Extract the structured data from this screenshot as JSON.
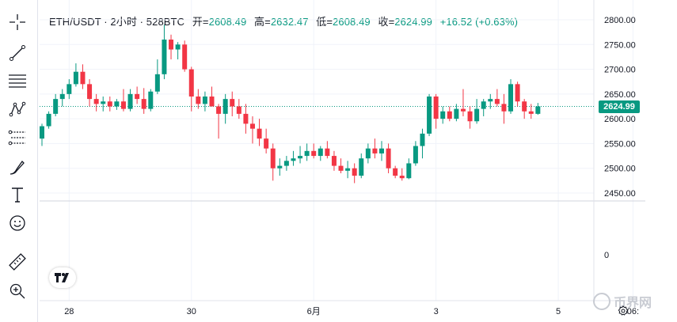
{
  "header": {
    "symbol": "ETH/USDT · 2小时 · 528BTC",
    "open_label": "开=",
    "open": "2608.49",
    "high_label": "高=",
    "high": "2632.47",
    "low_label": "低=",
    "low": "2608.49",
    "close_label": "收=",
    "close": "2624.99",
    "change": "+16.52 (+0.63%)"
  },
  "price_badge": "2624.99",
  "watermark": "币界网",
  "toolbar": {
    "tools": [
      "crosshair-icon",
      "trendline-icon",
      "horizontal-lines-icon",
      "pattern-icon",
      "fib-icon",
      "brush-icon",
      "text-icon",
      "emoji-icon",
      "ruler-icon",
      "zoom-icon"
    ]
  },
  "colors": {
    "up": "#089981",
    "down": "#f23645",
    "grid": "#e0e3eb"
  },
  "chart_data": {
    "type": "candlestick",
    "y_axis": {
      "ticks": [
        "2800.00",
        "2750.00",
        "2700.00",
        "2650.00",
        "2600.00",
        "2550.00",
        "2500.00",
        "2450.00"
      ],
      "volume_tick": "0",
      "range": [
        2430,
        2815
      ]
    },
    "x_axis": {
      "labels": [
        {
          "text": "28",
          "index": 4
        },
        {
          "text": "30",
          "index": 22
        },
        {
          "text": "6月",
          "index": 40
        },
        {
          "text": "3",
          "index": 58
        },
        {
          "text": "5",
          "index": 76
        },
        {
          "text": "06:",
          "index": 87
        }
      ]
    },
    "last_price": 2624.99,
    "candles": [
      [
        2560,
        2590,
        2545,
        2585
      ],
      [
        2585,
        2615,
        2580,
        2610
      ],
      [
        2610,
        2650,
        2605,
        2640
      ],
      [
        2640,
        2660,
        2625,
        2650
      ],
      [
        2650,
        2680,
        2640,
        2670
      ],
      [
        2670,
        2712,
        2665,
        2695
      ],
      [
        2695,
        2710,
        2660,
        2670
      ],
      [
        2670,
        2680,
        2625,
        2640
      ],
      [
        2640,
        2650,
        2615,
        2630
      ],
      [
        2630,
        2645,
        2615,
        2635
      ],
      [
        2635,
        2645,
        2615,
        2625
      ],
      [
        2625,
        2640,
        2618,
        2635
      ],
      [
        2635,
        2660,
        2615,
        2620
      ],
      [
        2620,
        2660,
        2615,
        2650
      ],
      [
        2650,
        2665,
        2630,
        2640
      ],
      [
        2640,
        2662,
        2610,
        2620
      ],
      [
        2620,
        2660,
        2615,
        2655
      ],
      [
        2655,
        2720,
        2650,
        2690
      ],
      [
        2690,
        2790,
        2680,
        2760
      ],
      [
        2760,
        2770,
        2720,
        2740
      ],
      [
        2740,
        2755,
        2720,
        2750
      ],
      [
        2750,
        2758,
        2695,
        2700
      ],
      [
        2700,
        2705,
        2615,
        2645
      ],
      [
        2645,
        2660,
        2620,
        2630
      ],
      [
        2630,
        2655,
        2615,
        2645
      ],
      [
        2645,
        2665,
        2625,
        2625
      ],
      [
        2625,
        2630,
        2560,
        2610
      ],
      [
        2610,
        2650,
        2590,
        2640
      ],
      [
        2640,
        2655,
        2605,
        2625
      ],
      [
        2625,
        2640,
        2600,
        2610
      ],
      [
        2610,
        2630,
        2570,
        2590
      ],
      [
        2590,
        2605,
        2550,
        2580
      ],
      [
        2580,
        2600,
        2545,
        2560
      ],
      [
        2560,
        2580,
        2530,
        2540
      ],
      [
        2540,
        2550,
        2475,
        2500
      ],
      [
        2500,
        2520,
        2485,
        2505
      ],
      [
        2505,
        2525,
        2495,
        2515
      ],
      [
        2515,
        2535,
        2505,
        2520
      ],
      [
        2520,
        2545,
        2510,
        2525
      ],
      [
        2525,
        2550,
        2515,
        2535
      ],
      [
        2535,
        2550,
        2520,
        2525
      ],
      [
        2525,
        2545,
        2515,
        2540
      ],
      [
        2540,
        2555,
        2520,
        2525
      ],
      [
        2525,
        2535,
        2495,
        2505
      ],
      [
        2505,
        2520,
        2490,
        2495
      ],
      [
        2495,
        2515,
        2480,
        2500
      ],
      [
        2500,
        2510,
        2470,
        2485
      ],
      [
        2485,
        2530,
        2480,
        2520
      ],
      [
        2520,
        2550,
        2510,
        2540
      ],
      [
        2540,
        2560,
        2520,
        2530
      ],
      [
        2530,
        2555,
        2515,
        2540
      ],
      [
        2540,
        2550,
        2490,
        2500
      ],
      [
        2500,
        2505,
        2480,
        2485
      ],
      [
        2485,
        2500,
        2475,
        2480
      ],
      [
        2480,
        2520,
        2478,
        2510
      ],
      [
        2510,
        2555,
        2505,
        2545
      ],
      [
        2545,
        2580,
        2520,
        2570
      ],
      [
        2570,
        2650,
        2565,
        2645
      ],
      [
        2645,
        2650,
        2580,
        2600
      ],
      [
        2600,
        2625,
        2590,
        2615
      ],
      [
        2615,
        2625,
        2595,
        2600
      ],
      [
        2600,
        2630,
        2595,
        2620
      ],
      [
        2620,
        2660,
        2605,
        2615
      ],
      [
        2615,
        2625,
        2580,
        2595
      ],
      [
        2595,
        2640,
        2590,
        2620
      ],
      [
        2620,
        2640,
        2605,
        2635
      ],
      [
        2635,
        2650,
        2620,
        2640
      ],
      [
        2640,
        2660,
        2625,
        2630
      ],
      [
        2630,
        2650,
        2590,
        2615
      ],
      [
        2615,
        2680,
        2610,
        2670
      ],
      [
        2670,
        2675,
        2625,
        2635
      ],
      [
        2635,
        2640,
        2600,
        2615
      ],
      [
        2615,
        2630,
        2600,
        2610
      ],
      [
        2610,
        2632,
        2608,
        2625
      ]
    ]
  }
}
